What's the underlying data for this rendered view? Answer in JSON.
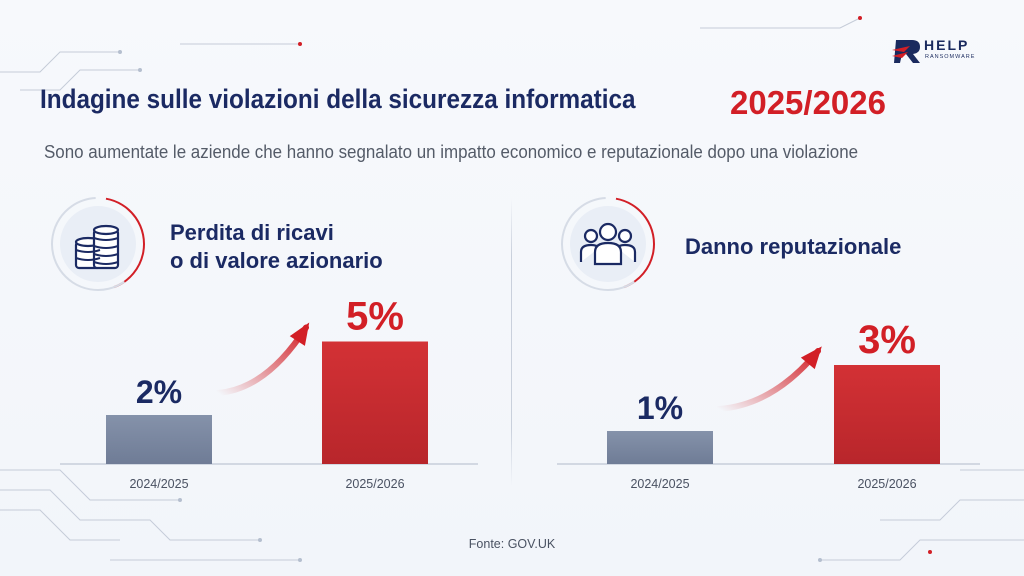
{
  "header": {
    "title": "Indagine sulle violazioni della sicurezza informatica",
    "year": "2025/2026",
    "subtitle": "Sono aumentate le aziende che hanno segnalato un impatto economico e reputazionale dopo una violazione"
  },
  "logo": {
    "text": "HELP",
    "sub": "RANSOMWARE"
  },
  "colors": {
    "navy": "#1b2a63",
    "red": "#d21f26",
    "bar_old": "#7d8aa3",
    "bar_new": "#c92a2e"
  },
  "panels": [
    {
      "icon": "coins-stack-icon",
      "title_lines": [
        "Perdita di ricavi",
        "o di valore azionario"
      ]
    },
    {
      "icon": "people-group-icon",
      "title_lines": [
        "Danno reputazionale"
      ]
    }
  ],
  "chart_data": [
    {
      "type": "bar",
      "categories": [
        "2024/2025",
        "2025/2026"
      ],
      "values": [
        2,
        5
      ],
      "labels": [
        "2%",
        "5%"
      ],
      "unit": "%",
      "title": "Perdita di ricavi o di valore azionario",
      "ylim": [
        0,
        6
      ],
      "grid": false,
      "legend": "none"
    },
    {
      "type": "bar",
      "categories": [
        "2024/2025",
        "2025/2026"
      ],
      "values": [
        1,
        3
      ],
      "labels": [
        "1%",
        "3%"
      ],
      "unit": "%",
      "title": "Danno reputazionale",
      "ylim": [
        0,
        5
      ],
      "grid": false,
      "legend": "none"
    }
  ],
  "source": "Fonte: GOV.UK"
}
